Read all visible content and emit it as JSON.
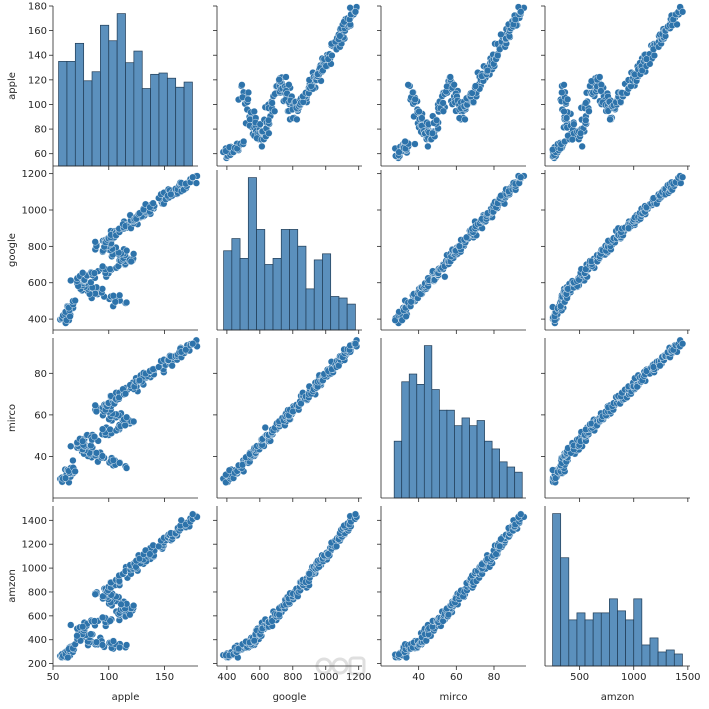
{
  "chart_data": {
    "type": "scatter",
    "subtype": "pairplot",
    "variables": [
      "apple",
      "google",
      "mirco",
      "amzon"
    ],
    "colors": {
      "hist": "#5b90bd",
      "hist_edge": "#1f3b55",
      "dot": "#2d73ab"
    },
    "axes": {
      "apple": {
        "lim": [
          50,
          180
        ],
        "ticks": [
          50,
          100,
          150
        ],
        "yticks": [
          60,
          80,
          100,
          120,
          140,
          160,
          180
        ]
      },
      "google": {
        "lim": [
          340,
          1220
        ],
        "ticks": [
          400,
          600,
          800,
          1000,
          1200
        ],
        "yticks": [
          400,
          600,
          800,
          1000,
          1200
        ]
      },
      "mirco": {
        "lim": [
          20,
          97
        ],
        "ticks": [
          40,
          60,
          80
        ],
        "yticks": [
          40,
          60,
          80
        ]
      },
      "amzon": {
        "lim": [
          180,
          1520
        ],
        "ticks": [
          500,
          1000,
          1500
        ],
        "yticks": [
          200,
          400,
          600,
          800,
          1000,
          1200,
          1400
        ]
      }
    },
    "histograms": {
      "apple": {
        "edges": [
          55,
          62.5,
          70,
          77.5,
          85,
          92.5,
          100,
          107.5,
          115,
          122.5,
          130,
          137.5,
          145,
          152.5,
          160,
          167.5,
          175
        ],
        "counts": [
          81,
          81,
          95,
          66,
          73,
          109,
          97,
          118,
          80,
          89,
          60,
          71,
          72,
          68,
          61,
          65
        ]
      },
      "google": {
        "edges": [
          380,
          430,
          480,
          530,
          580,
          630,
          680,
          730,
          780,
          830,
          880,
          930,
          980,
          1030,
          1080,
          1130,
          1180
        ],
        "counts": [
          52,
          60,
          47,
          100,
          66,
          43,
          47,
          66,
          66,
          55,
          27,
          46,
          50,
          22,
          21,
          17
        ]
      },
      "mirco": {
        "edges": [
          27,
          31,
          35,
          39,
          43,
          47,
          51,
          55,
          59,
          63,
          67,
          71,
          75,
          79,
          83,
          87,
          91,
          95
        ],
        "counts": [
          22,
          45,
          48,
          44,
          59,
          42,
          34,
          34,
          28,
          31,
          28,
          30,
          22,
          19,
          14,
          12,
          10
        ]
      },
      "amzon": {
        "edges": [
          250,
          325,
          400,
          475,
          550,
          625,
          700,
          775,
          850,
          925,
          1000,
          1075,
          1150,
          1225,
          1300,
          1375,
          1450
        ],
        "counts": [
          152,
          108,
          46,
          53,
          46,
          53,
          53,
          67,
          55,
          46,
          67,
          21,
          28,
          14,
          16,
          12
        ]
      }
    },
    "xlabels": [
      "apple",
      "google",
      "mirco",
      "amzon"
    ],
    "ylabels": [
      "apple",
      "google",
      "mirco",
      "amzon"
    ]
  }
}
